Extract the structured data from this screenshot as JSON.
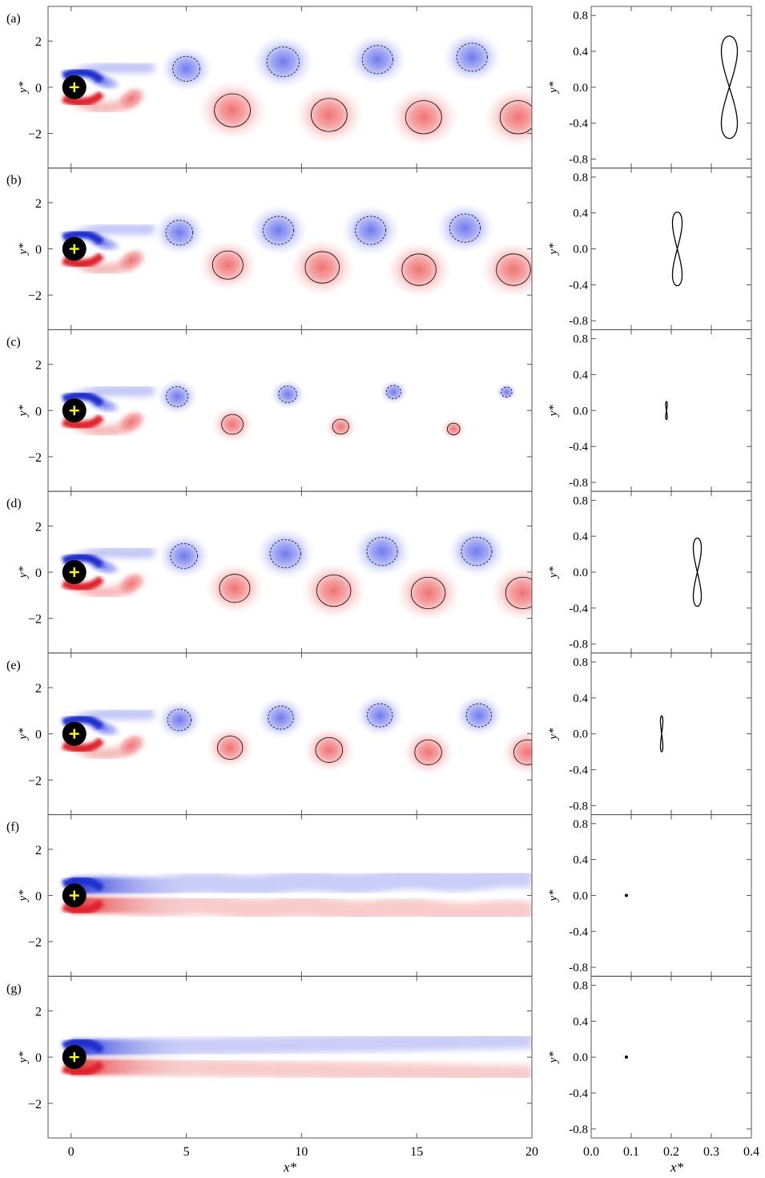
{
  "chart_data": {
    "type": "multi-panel",
    "colors": {
      "positive": "#e0242a",
      "negative": "#1c2ecf",
      "marker": "#ffff00",
      "body": "#000000"
    },
    "shared": {
      "vorticity_xlim": [
        -1,
        20
      ],
      "vorticity_ylim": [
        -3.5,
        3.5
      ],
      "vorticity_xticks": [
        0,
        5,
        10,
        15,
        20
      ],
      "vorticity_yticks": [
        2,
        0,
        -2
      ],
      "vorticity_xlabel": "x*",
      "vorticity_ylabel": "y*",
      "traj_xlim": [
        0.0,
        0.4
      ],
      "traj_ylim": [
        -0.9,
        0.9
      ],
      "traj_xticks": [
        "0.0",
        "0.1",
        "0.2",
        "0.3",
        "0.4"
      ],
      "traj_yticks": [
        "0.8",
        "0.4",
        "0.0",
        "-0.4",
        "-0.8"
      ],
      "traj_xlabel": "x*",
      "traj_ylabel": "y*"
    },
    "panels": [
      {
        "label": "(a)",
        "wake": "vortex-street",
        "vortices": [
          {
            "x": 5.0,
            "y": 0.8,
            "s": -1,
            "r": 0.75
          },
          {
            "x": 7.0,
            "y": -1.0,
            "s": 1,
            "r": 1.0
          },
          {
            "x": 9.2,
            "y": 1.1,
            "s": -1,
            "r": 0.9
          },
          {
            "x": 11.2,
            "y": -1.2,
            "s": 1,
            "r": 1.0
          },
          {
            "x": 13.3,
            "y": 1.2,
            "s": -1,
            "r": 0.85
          },
          {
            "x": 15.3,
            "y": -1.3,
            "s": 1,
            "r": 1.0
          },
          {
            "x": 17.4,
            "y": 1.3,
            "s": -1,
            "r": 0.85
          },
          {
            "x": 19.4,
            "y": -1.3,
            "s": 1,
            "r": 1.0
          }
        ],
        "trajectory": {
          "x_center": 0.345,
          "x_amp": 0.02,
          "y_amp": 0.57
        }
      },
      {
        "label": "(b)",
        "wake": "vortex-street",
        "vortices": [
          {
            "x": 4.7,
            "y": 0.7,
            "s": -1,
            "r": 0.75
          },
          {
            "x": 6.8,
            "y": -0.7,
            "s": 1,
            "r": 0.85
          },
          {
            "x": 9.0,
            "y": 0.8,
            "s": -1,
            "r": 0.85
          },
          {
            "x": 10.9,
            "y": -0.8,
            "s": 1,
            "r": 0.95
          },
          {
            "x": 13.0,
            "y": 0.8,
            "s": -1,
            "r": 0.85
          },
          {
            "x": 15.1,
            "y": -0.9,
            "s": 1,
            "r": 0.95
          },
          {
            "x": 17.1,
            "y": 0.9,
            "s": -1,
            "r": 0.85
          },
          {
            "x": 19.2,
            "y": -0.9,
            "s": 1,
            "r": 0.95
          }
        ],
        "trajectory": {
          "x_center": 0.215,
          "x_amp": 0.012,
          "y_amp": 0.41
        }
      },
      {
        "label": "(c)",
        "wake": "vortex-street",
        "vortices": [
          {
            "x": 4.6,
            "y": 0.6,
            "s": -1,
            "r": 0.6
          },
          {
            "x": 7.0,
            "y": -0.6,
            "s": 1,
            "r": 0.6
          },
          {
            "x": 9.4,
            "y": 0.7,
            "s": -1,
            "r": 0.5
          },
          {
            "x": 11.7,
            "y": -0.7,
            "s": 1,
            "r": 0.45
          },
          {
            "x": 14.0,
            "y": 0.8,
            "s": -1,
            "r": 0.4
          },
          {
            "x": 16.6,
            "y": -0.8,
            "s": 1,
            "r": 0.35
          },
          {
            "x": 18.9,
            "y": 0.8,
            "s": -1,
            "r": 0.3
          }
        ],
        "trajectory": {
          "x_center": 0.188,
          "x_amp": 0.002,
          "y_amp": 0.1
        }
      },
      {
        "label": "(d)",
        "wake": "vortex-street",
        "vortices": [
          {
            "x": 4.9,
            "y": 0.7,
            "s": -1,
            "r": 0.75
          },
          {
            "x": 7.1,
            "y": -0.7,
            "s": 1,
            "r": 0.85
          },
          {
            "x": 9.3,
            "y": 0.8,
            "s": -1,
            "r": 0.85
          },
          {
            "x": 11.4,
            "y": -0.8,
            "s": 1,
            "r": 0.95
          },
          {
            "x": 13.5,
            "y": 0.9,
            "s": -1,
            "r": 0.85
          },
          {
            "x": 15.5,
            "y": -0.9,
            "s": 1,
            "r": 0.95
          },
          {
            "x": 17.6,
            "y": 0.9,
            "s": -1,
            "r": 0.85
          },
          {
            "x": 19.6,
            "y": -0.9,
            "s": 1,
            "r": 0.95
          }
        ],
        "trajectory": {
          "x_center": 0.265,
          "x_amp": 0.01,
          "y_amp": 0.38
        }
      },
      {
        "label": "(e)",
        "wake": "vortex-street",
        "vortices": [
          {
            "x": 4.7,
            "y": 0.6,
            "s": -1,
            "r": 0.65
          },
          {
            "x": 6.9,
            "y": -0.6,
            "s": 1,
            "r": 0.7
          },
          {
            "x": 9.1,
            "y": 0.7,
            "s": -1,
            "r": 0.7
          },
          {
            "x": 11.2,
            "y": -0.7,
            "s": 1,
            "r": 0.75
          },
          {
            "x": 13.4,
            "y": 0.8,
            "s": -1,
            "r": 0.7
          },
          {
            "x": 15.5,
            "y": -0.8,
            "s": 1,
            "r": 0.75
          },
          {
            "x": 17.7,
            "y": 0.8,
            "s": -1,
            "r": 0.7
          },
          {
            "x": 19.8,
            "y": -0.8,
            "s": 1,
            "r": 0.75
          }
        ],
        "trajectory": {
          "x_center": 0.176,
          "x_amp": 0.003,
          "y_amp": 0.2
        }
      },
      {
        "label": "(f)",
        "wake": "steady-wavy",
        "vortices": [],
        "trajectory": {
          "x_center": 0.088,
          "x_amp": 0.0,
          "y_amp": 0.0
        }
      },
      {
        "label": "(g)",
        "wake": "steady",
        "vortices": [],
        "trajectory": {
          "x_center": 0.088,
          "x_amp": 0.0,
          "y_amp": 0.0
        }
      }
    ]
  }
}
